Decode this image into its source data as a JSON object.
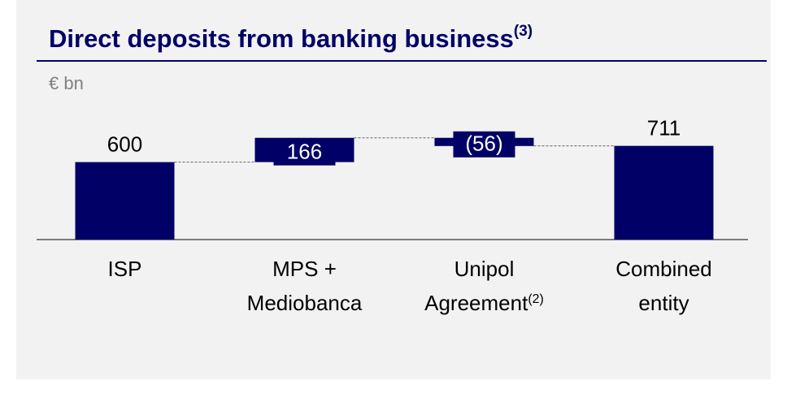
{
  "chart_data": {
    "type": "waterfall",
    "title": "Direct deposits from banking business",
    "title_note": "(3)",
    "unit_label": "€ bn",
    "categories": [
      "ISP",
      "MPS + Mediobanca",
      "Unipol Agreement",
      "Combined entity"
    ],
    "category_notes": {
      "2": "(2)"
    },
    "values": [
      600,
      166,
      -56,
      711
    ],
    "value_labels": [
      "600",
      "166",
      "(56)",
      "711"
    ],
    "totals": [
      true,
      false,
      false,
      true
    ],
    "color": "#000066",
    "ylim": [
      70,
      1000
    ]
  }
}
